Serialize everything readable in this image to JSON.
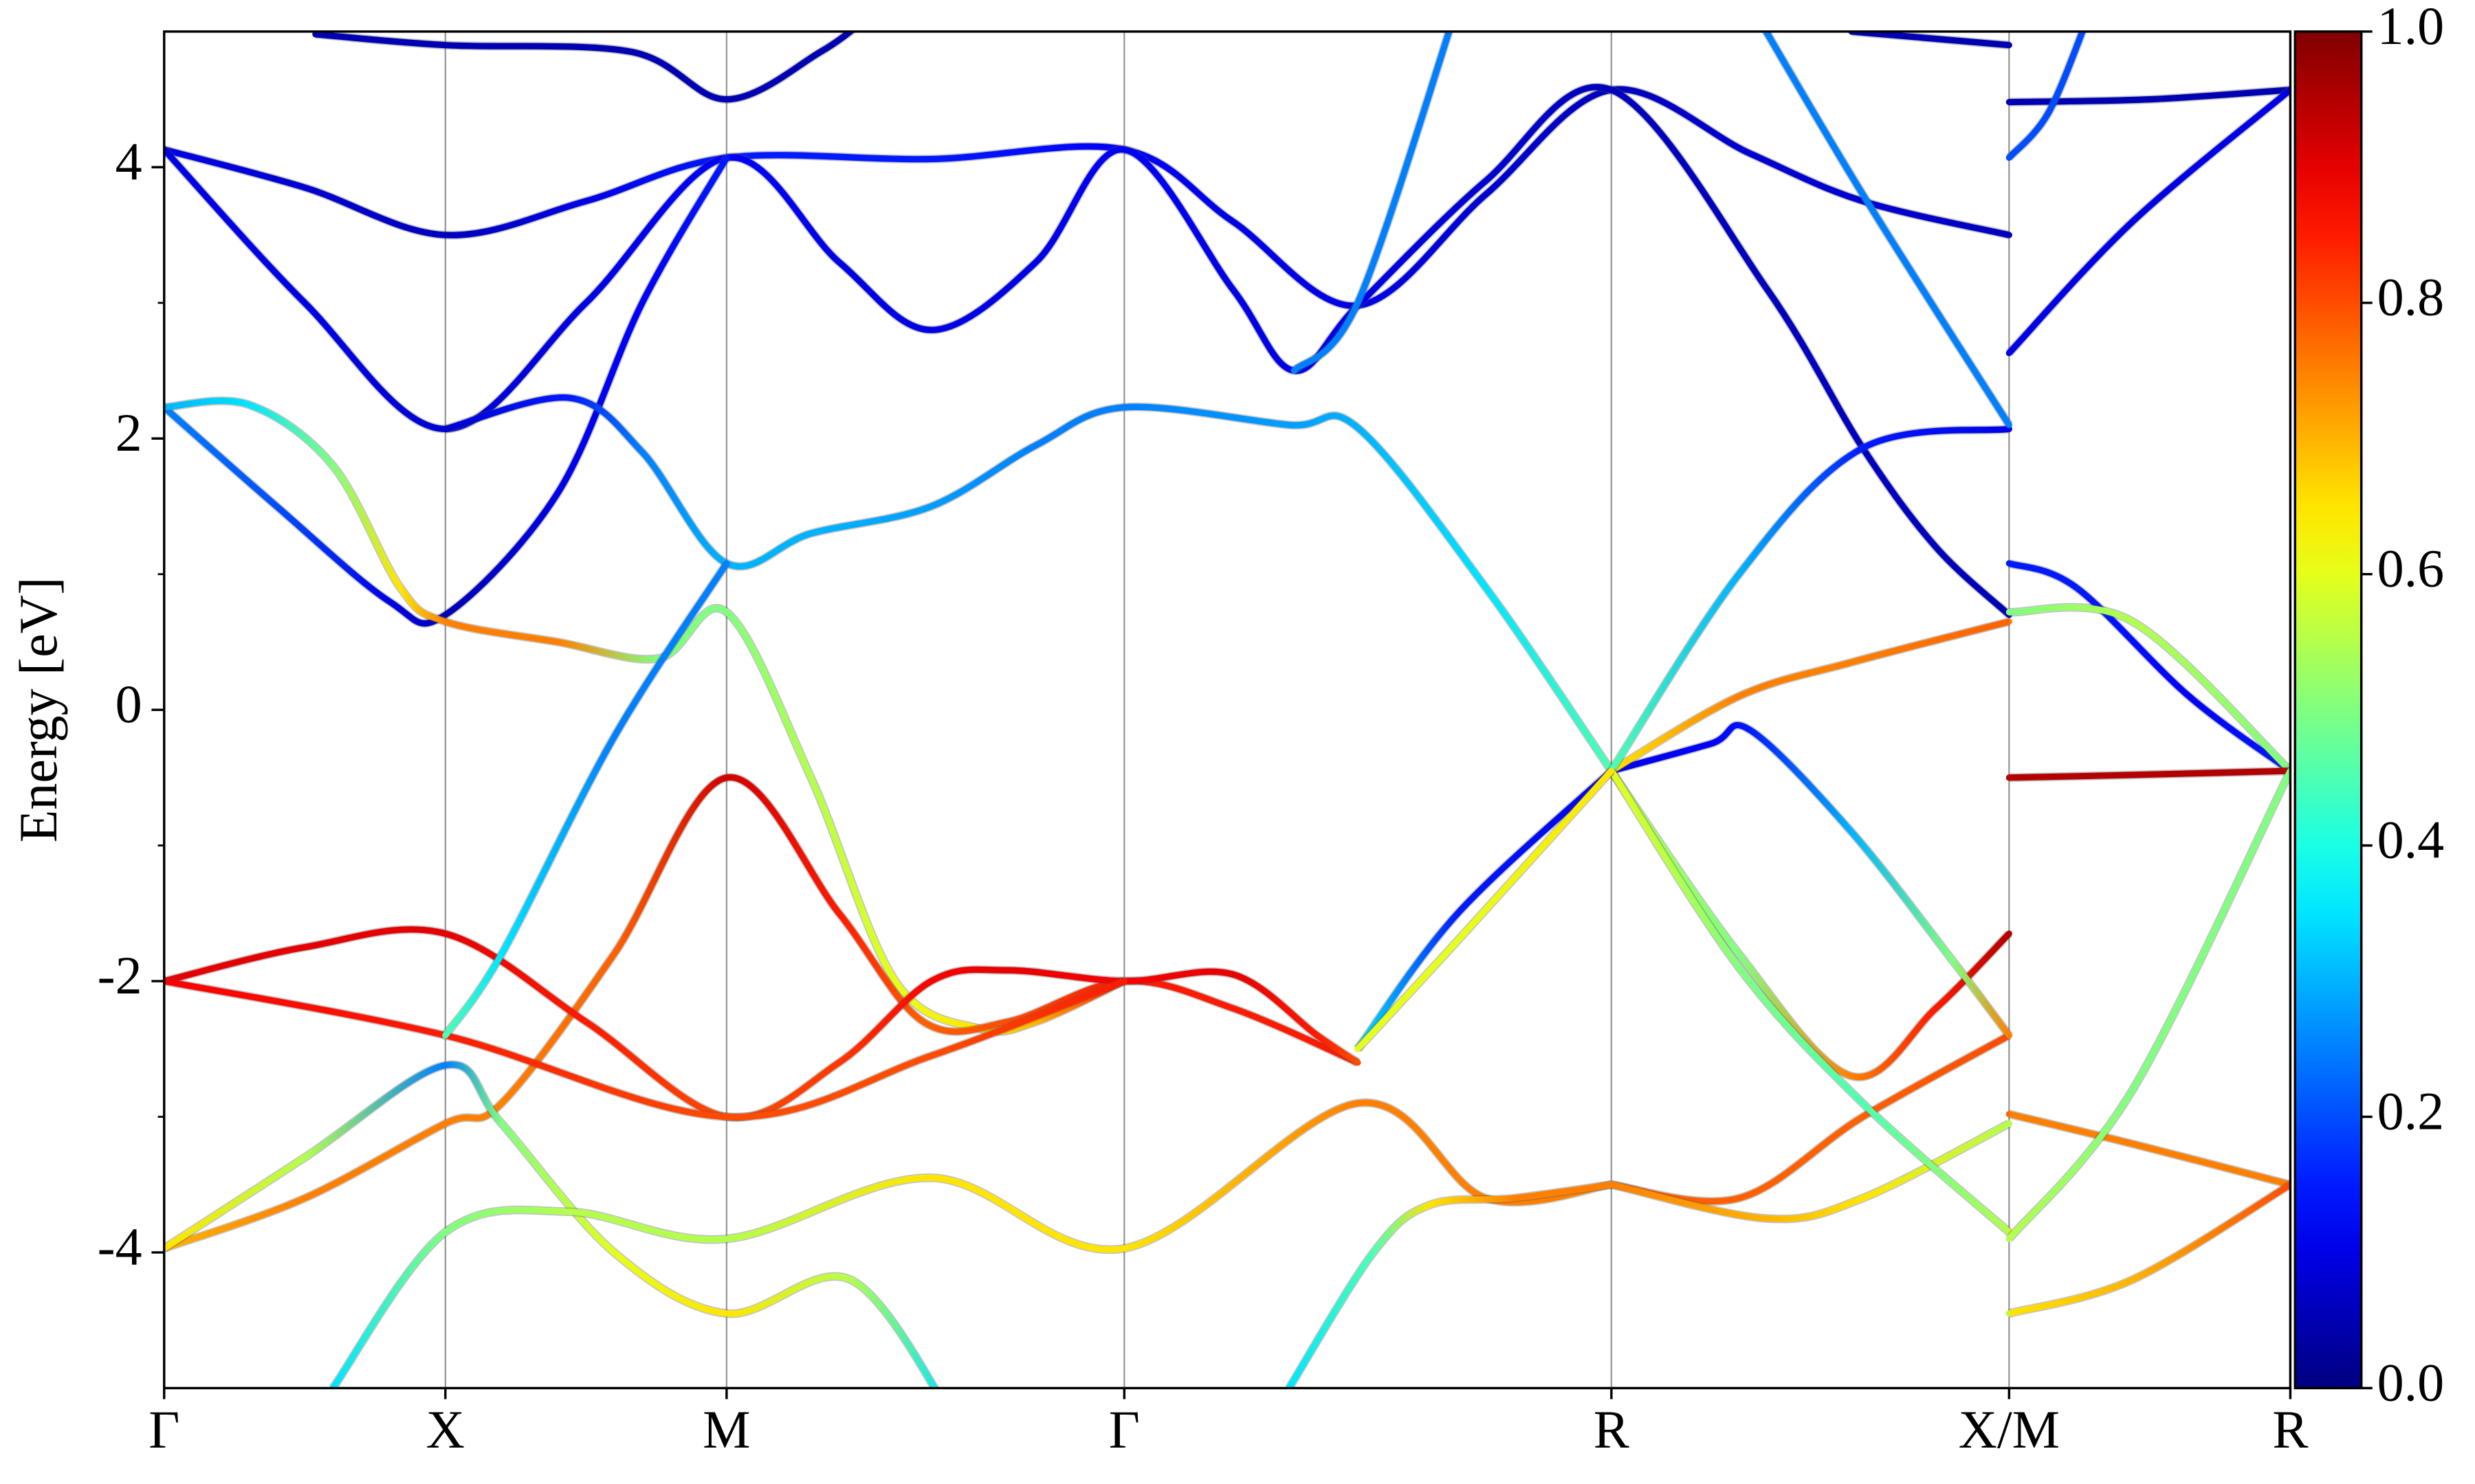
{
  "chart_data": {
    "type": "band",
    "ylabel": "Energy [eV]",
    "xlim": [
      0,
      3.7802
    ],
    "xticks": [
      {
        "value": 0,
        "label": "Γ"
      },
      {
        "value": 0.5,
        "label": "X"
      },
      {
        "value": 1.0,
        "label": "M"
      },
      {
        "value": 1.7071,
        "label": "Γ"
      },
      {
        "value": 2.5731,
        "label": "R"
      },
      {
        "value": 3.2802,
        "label": "X/M"
      },
      {
        "value": 3.7802,
        "label": "R"
      }
    ],
    "ylim": [
      -5,
      5
    ],
    "yticks": [
      -4,
      -2,
      0,
      2,
      4
    ],
    "yminorticks": [
      -3,
      -1,
      1,
      3
    ],
    "grid": "x",
    "colormap": "jet",
    "clim": [
      0,
      1
    ],
    "cticks": [
      {
        "value": 0,
        "label": "0.0"
      },
      0.2,
      0.4,
      0.6,
      0.8,
      {
        "value": 1,
        "label": "1.0"
      }
    ],
    "bands": [
      {
        "x": [
          0.269,
          0.5,
          0.831,
          1.0,
          1.167,
          1.25
        ],
        "values": [
          4.98,
          4.9,
          4.85,
          4.5,
          4.85,
          5.1
        ],
        "weights": [
          0.05,
          0.05,
          0.05,
          0.05,
          0.05,
          0.05
        ]
      },
      {
        "x": [
          3.0,
          3.2802,
          null,
          3.2802,
          3.53,
          3.7802
        ],
        "values": [
          5.0,
          4.9,
          null,
          4.48,
          4.5,
          4.57
        ],
        "weights": [
          0.05,
          0.05,
          null,
          0.05,
          0.05,
          0.05
        ]
      },
      {
        "x": [
          0,
          0.25,
          0.5,
          0.75,
          1.0,
          1.364,
          1.707,
          1.9,
          2.122,
          2.35,
          2.573,
          2.82,
          3.02,
          3.2802
        ],
        "values": [
          4.13,
          3.85,
          3.5,
          3.75,
          4.07,
          4.06,
          4.13,
          3.6,
          2.98,
          3.8,
          4.57,
          4.1,
          3.75,
          3.5
        ],
        "weights": [
          0.1,
          0.08,
          0.06,
          0.1,
          0.15,
          0.15,
          0.12,
          0.1,
          0.1,
          0.08,
          0.06,
          0.08,
          0.08,
          0.06
        ]
      },
      {
        "x": [
          0,
          0.25,
          0.5,
          0.75,
          1.0,
          1.2,
          1.364,
          1.55,
          1.707,
          1.9,
          2.009,
          2.122,
          2.35,
          2.573,
          2.85,
          3.02,
          3.15,
          3.2802
        ],
        "values": [
          4.13,
          3.0,
          2.07,
          3.0,
          4.07,
          3.3,
          2.8,
          3.3,
          4.13,
          3.1,
          2.5,
          2.98,
          3.9,
          4.57,
          3.1,
          1.93,
          1.2,
          0.7
        ],
        "weights": [
          0.1,
          0.1,
          0.08,
          0.1,
          0.12,
          0.1,
          0.1,
          0.1,
          0.12,
          0.1,
          0.1,
          0.1,
          0.08,
          0.06,
          0.06,
          0.06,
          0.06,
          0.05
        ]
      },
      {
        "x": [
          0,
          0.2,
          0.4,
          0.5,
          0.7,
          0.85,
          1.0
        ],
        "values": [
          2.23,
          1.5,
          0.8,
          0.7,
          1.6,
          3.0,
          4.07
        ],
        "weights": [
          0.25,
          0.2,
          0.1,
          0.05,
          0.1,
          0.12,
          0.15
        ]
      },
      {
        "x": [
          0.5,
          0.72,
          0.85,
          1.0,
          1.15,
          1.364,
          1.55,
          1.707,
          2.0,
          2.122,
          2.35,
          2.573
        ],
        "values": [
          2.07,
          2.3,
          1.9,
          1.08,
          1.3,
          1.5,
          1.95,
          2.23,
          2.1,
          2.08,
          0.9,
          -0.45
        ],
        "weights": [
          0.08,
          0.15,
          0.25,
          0.3,
          0.3,
          0.28,
          0.25,
          0.25,
          0.28,
          0.3,
          0.35,
          0.45
        ]
      },
      {
        "x": [
          0,
          0.15,
          0.3,
          0.42,
          0.5,
          0.7,
          0.88,
          1.0,
          1.15,
          1.3,
          1.45,
          1.55,
          1.707
        ],
        "values": [
          2.23,
          2.25,
          1.8,
          0.9,
          0.65,
          0.5,
          0.38,
          0.72,
          -0.5,
          -2.0,
          -2.35,
          -2.3,
          -2.0
        ],
        "weights": [
          0.3,
          0.35,
          0.5,
          0.65,
          0.75,
          0.75,
          0.5,
          0.5,
          0.55,
          0.6,
          0.65,
          0.7,
          0.85
        ]
      },
      {
        "x": [
          0,
          0.25,
          0.5,
          0.6,
          0.8,
          1.0,
          1.2,
          1.35,
          1.5,
          1.707,
          1.9,
          2.122
        ],
        "values": [
          -3.97,
          -3.6,
          -3.05,
          -2.9,
          -1.8,
          -0.5,
          -1.5,
          -2.3,
          -2.3,
          -2.0,
          -2.2,
          -2.6
        ],
        "weights": [
          0.7,
          0.75,
          0.75,
          0.75,
          0.78,
          0.92,
          0.85,
          0.78,
          0.8,
          0.85,
          0.85,
          0.85
        ]
      },
      {
        "x": [
          0,
          0.25,
          0.5,
          0.75,
          1.0,
          1.2,
          1.364,
          1.5,
          1.707,
          1.9,
          2.05,
          2.122
        ],
        "values": [
          -2.0,
          -1.75,
          -1.65,
          -2.3,
          -3.0,
          -2.6,
          -2.0,
          -1.92,
          -2.0,
          -1.95,
          -2.4,
          -2.6
        ],
        "weights": [
          0.9,
          0.9,
          0.9,
          0.85,
          0.8,
          0.82,
          0.88,
          0.9,
          0.88,
          0.9,
          0.85,
          0.8
        ]
      },
      {
        "x": [
          0,
          0.5,
          1.0,
          1.364,
          1.707
        ],
        "values": [
          -2.0,
          -2.4,
          -3.0,
          -2.55,
          -2.0
        ],
        "weights": [
          0.88,
          0.85,
          0.8,
          0.8,
          0.85
        ]
      },
      {
        "x": [
          0,
          0.25,
          0.5,
          0.6,
          0.8,
          1.0,
          1.22,
          1.4
        ],
        "values": [
          -3.97,
          -3.3,
          -2.62,
          -3.05,
          -4.0,
          -4.45,
          -4.2,
          -5.2
        ],
        "weights": [
          0.65,
          0.55,
          0.25,
          0.5,
          0.6,
          0.65,
          0.55,
          0.35
        ]
      },
      {
        "x": [
          0.5,
          0.6,
          0.8,
          1.0
        ],
        "values": [
          -2.4,
          -1.8,
          -0.2,
          1.08
        ],
        "weights": [
          0.45,
          0.35,
          0.25,
          0.25
        ]
      },
      {
        "x": [
          0.3,
          0.5,
          0.72,
          1.0,
          1.364,
          1.707,
          2.122,
          2.35,
          2.573
        ],
        "values": [
          -5.0,
          -3.85,
          -3.7,
          -3.9,
          -3.45,
          -3.97,
          -2.9,
          -3.6,
          -3.5
        ],
        "weights": [
          0.35,
          0.5,
          0.55,
          0.55,
          0.65,
          0.65,
          0.75,
          0.75,
          0.75
        ]
      },
      {
        "x": [
          2.0,
          2.15,
          2.25,
          2.4,
          2.573
        ],
        "values": [
          -5.0,
          -4.0,
          -3.65,
          -3.6,
          -3.5
        ],
        "weights": [
          0.35,
          0.45,
          0.65,
          0.75,
          0.75
        ]
      },
      {
        "x": [
          2.573,
          2.8,
          3.02,
          3.2802
        ],
        "values": [
          -3.5,
          -3.6,
          -3.0,
          -2.4
        ],
        "weights": [
          0.78,
          0.78,
          0.78,
          0.8
        ]
      },
      {
        "x": [
          2.573,
          2.85,
          3.02,
          3.2802
        ],
        "values": [
          -3.5,
          -3.75,
          -3.6,
          -3.05
        ],
        "weights": [
          0.75,
          0.7,
          0.65,
          0.55
        ]
      },
      {
        "x": [
          2.573,
          2.8,
          3.0,
          3.15,
          3.2802
        ],
        "values": [
          -0.45,
          -1.8,
          -2.7,
          -2.2,
          -1.65
        ],
        "weights": [
          0.55,
          0.5,
          0.75,
          0.85,
          0.95
        ]
      },
      {
        "x": [
          2.573,
          2.75,
          2.82,
          3.0,
          3.18,
          3.2802
        ],
        "values": [
          -0.45,
          -0.25,
          -0.15,
          -0.9,
          -1.85,
          -2.4
        ],
        "weights": [
          0.1,
          0.12,
          0.15,
          0.3,
          0.5,
          0.75
        ]
      },
      {
        "x": [
          2.573,
          2.8,
          3.0,
          3.2802,
          null,
          3.2802,
          3.5,
          3.7802
        ],
        "values": [
          -0.45,
          0.1,
          0.35,
          0.65,
          null,
          -2.98,
          -3.2,
          -3.5
        ],
        "weights": [
          0.65,
          0.75,
          0.75,
          0.78,
          null,
          0.75,
          0.75,
          0.75
        ]
      },
      {
        "x": [
          2.573,
          2.8,
          3.02,
          3.2802
        ],
        "values": [
          -0.45,
          1.0,
          1.93,
          2.07
        ],
        "weights": [
          0.45,
          0.3,
          0.15,
          0.1
        ]
      },
      {
        "x": [
          2.573,
          2.8,
          3.02,
          3.2802,
          null,
          3.2802,
          3.5,
          3.7802
        ],
        "values": [
          -0.45,
          -1.9,
          -2.9,
          -3.85,
          null,
          -4.45,
          -4.2,
          -3.5
        ],
        "weights": [
          0.6,
          0.5,
          0.45,
          0.55,
          null,
          0.65,
          0.7,
          0.8
        ]
      },
      {
        "x": [
          3.2802,
          3.4,
          3.6,
          3.7802
        ],
        "values": [
          1.08,
          0.9,
          0.1,
          -0.45
        ],
        "weights": [
          0.15,
          0.15,
          0.12,
          0.15
        ]
      },
      {
        "x": [
          3.2802,
          3.5,
          3.7802
        ],
        "values": [
          0.72,
          0.65,
          -0.45
        ],
        "weights": [
          0.5,
          0.55,
          0.5
        ]
      },
      {
        "x": [
          3.2802,
          3.5,
          3.7802
        ],
        "values": [
          -0.5,
          -0.48,
          -0.45
        ],
        "weights": [
          0.95,
          0.95,
          0.95
        ]
      },
      {
        "x": [
          3.2802,
          3.5,
          3.7802
        ],
        "values": [
          -3.9,
          -2.8,
          -0.45
        ],
        "weights": [
          0.55,
          0.5,
          0.5
        ]
      },
      {
        "x": [
          3.2802,
          3.5,
          3.7802
        ],
        "values": [
          2.63,
          3.6,
          4.57
        ],
        "weights": [
          0.1,
          0.1,
          0.1
        ]
      },
      {
        "x": [
          3.2802,
          3.35,
          3.42
        ],
        "values": [
          4.07,
          4.4,
          5.1
        ],
        "weights": [
          0.2,
          0.2,
          0.2
        ]
      },
      {
        "x": [
          2.122,
          2.3,
          2.573
        ],
        "values": [
          -2.5,
          -1.5,
          -0.45
        ],
        "weights": [
          0.35,
          0.15,
          0.1
        ]
      },
      {
        "x": [
          2.122,
          2.3,
          2.573
        ],
        "values": [
          -2.5,
          -1.7,
          -0.45
        ],
        "weights": [
          0.6,
          0.6,
          0.65
        ]
      },
      {
        "x": [
          2.009,
          2.122,
          2.3
        ],
        "values": [
          2.5,
          3.0,
          5.2
        ],
        "weights": [
          0.25,
          0.25,
          0.25
        ]
      },
      {
        "x": [
          2.82,
          3.02,
          3.2802
        ],
        "values": [
          5.2,
          3.8,
          2.1
        ],
        "weights": [
          0.25,
          0.25,
          0.25
        ]
      }
    ]
  }
}
